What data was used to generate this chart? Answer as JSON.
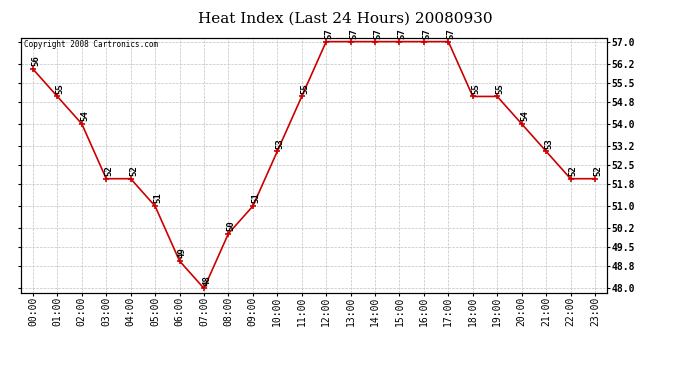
{
  "title": "Heat Index (Last 24 Hours) 20080930",
  "copyright": "Copyright 2008 Cartronics.com",
  "hours": [
    0,
    1,
    2,
    3,
    4,
    5,
    6,
    7,
    8,
    9,
    10,
    11,
    12,
    13,
    14,
    15,
    16,
    17,
    18,
    19,
    20,
    21,
    22,
    23
  ],
  "hour_labels": [
    "00:00",
    "01:00",
    "02:00",
    "03:00",
    "04:00",
    "05:00",
    "06:00",
    "07:00",
    "08:00",
    "09:00",
    "10:00",
    "11:00",
    "12:00",
    "13:00",
    "14:00",
    "15:00",
    "16:00",
    "17:00",
    "18:00",
    "19:00",
    "20:00",
    "21:00",
    "22:00",
    "23:00"
  ],
  "values": [
    56,
    55,
    54,
    52,
    52,
    51,
    49,
    48,
    50,
    51,
    53,
    55,
    57,
    57,
    57,
    57,
    57,
    57,
    55,
    55,
    54,
    53,
    52,
    52
  ],
  "line_color": "#cc0000",
  "marker_color": "#cc0000",
  "bg_color": "#ffffff",
  "plot_bg_color": "#ffffff",
  "grid_color": "#bbbbbb",
  "title_fontsize": 11,
  "label_fontsize": 7,
  "annotation_fontsize": 6.5,
  "ylim_min": 48.0,
  "ylim_max": 57.0,
  "ytick_values": [
    48.0,
    48.8,
    49.5,
    50.2,
    51.0,
    51.8,
    52.5,
    53.2,
    54.0,
    54.8,
    55.5,
    56.2,
    57.0
  ]
}
